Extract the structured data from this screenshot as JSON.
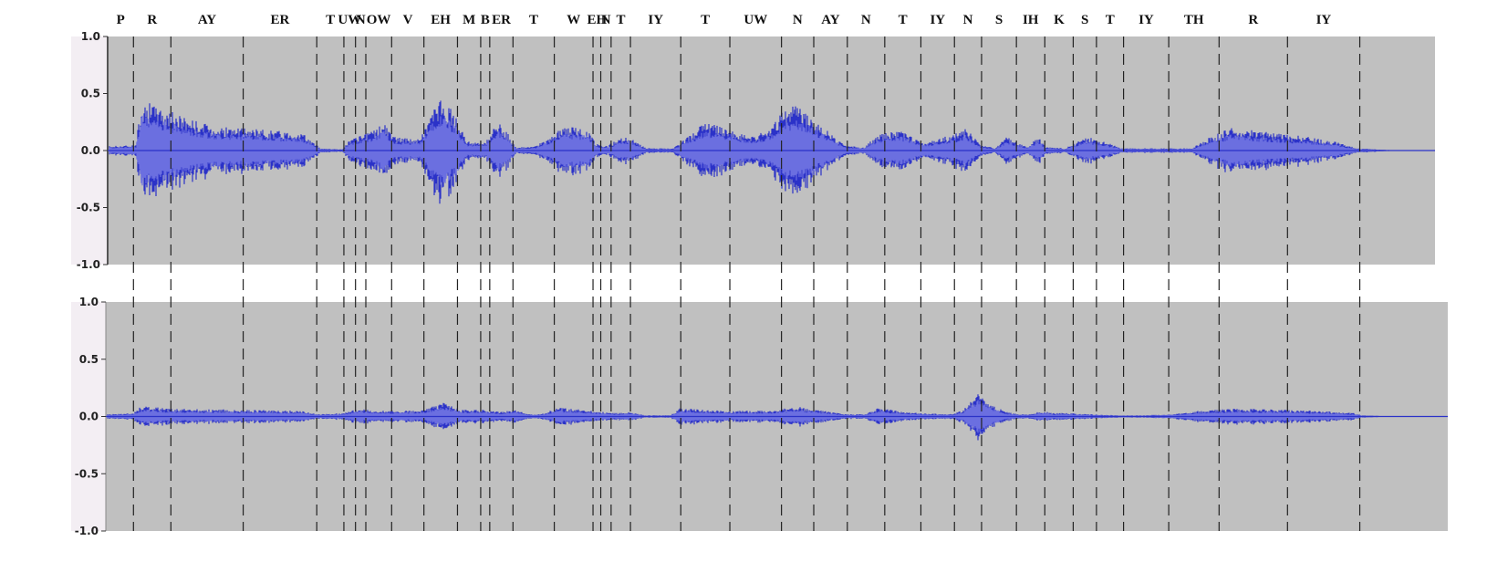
{
  "colors": {
    "panel_bg": "#c0c0c0",
    "waveform_outer": "#2b32c8",
    "waveform_inner": "#6b6fe0",
    "boundary_line": "#222222",
    "axis_strip": "#f3eef3"
  },
  "chart_data": {
    "type": "line",
    "title": "",
    "xlabel": "",
    "ylabel": "",
    "phonemes": [
      "P",
      "R",
      "AY",
      "ER",
      "T",
      "UW",
      "N",
      "OW",
      "V",
      "EH",
      "M",
      "B",
      "ER",
      "T",
      "W",
      "EH",
      "N",
      "T",
      "IY",
      "T",
      "UW",
      "N",
      "AY",
      "N",
      "T",
      "IY",
      "N",
      "S",
      "IH",
      "K",
      "S",
      "T",
      "IY",
      "TH",
      "R",
      "IY"
    ],
    "x_range": [
      0,
      100
    ],
    "boundaries": [
      2.0,
      4.9,
      10.5,
      16.2,
      18.3,
      19.2,
      20.0,
      22.0,
      24.5,
      27.1,
      28.9,
      29.6,
      31.4,
      34.6,
      37.6,
      38.2,
      39.0,
      40.5,
      44.4,
      48.2,
      52.2,
      54.7,
      57.3,
      60.2,
      63.0,
      65.6,
      67.7,
      70.4,
      72.6,
      74.8,
      76.6,
      78.7,
      82.2,
      86.1,
      91.4,
      97.0
    ],
    "panels": [
      {
        "name": "",
        "yticks": [
          "1.0",
          "0.5",
          "0.0",
          "-0.5",
          "-1.0"
        ],
        "ylim": [
          -1.0,
          1.0
        ],
        "envelope": [
          [
            0,
            0.04
          ],
          [
            2.2,
            0.05
          ],
          [
            2.6,
            0.45
          ],
          [
            4.0,
            0.38
          ],
          [
            6.0,
            0.3
          ],
          [
            8.0,
            0.22
          ],
          [
            10.0,
            0.2
          ],
          [
            13.0,
            0.18
          ],
          [
            15.0,
            0.16
          ],
          [
            16.5,
            0.02
          ],
          [
            18.2,
            0.01
          ],
          [
            18.7,
            0.09
          ],
          [
            20.3,
            0.16
          ],
          [
            21.4,
            0.25
          ],
          [
            22.2,
            0.12
          ],
          [
            24.2,
            0.1
          ],
          [
            25.2,
            0.38
          ],
          [
            26.0,
            0.46
          ],
          [
            27.0,
            0.3
          ],
          [
            27.8,
            0.08
          ],
          [
            29.3,
            0.08
          ],
          [
            30.2,
            0.26
          ],
          [
            31.0,
            0.15
          ],
          [
            31.6,
            0.03
          ],
          [
            32.5,
            0.03
          ],
          [
            33.2,
            0.04
          ],
          [
            35.5,
            0.22
          ],
          [
            37.2,
            0.2
          ],
          [
            37.8,
            0.06
          ],
          [
            38.7,
            0.04
          ],
          [
            39.5,
            0.1
          ],
          [
            40.4,
            0.12
          ],
          [
            41.7,
            0.02
          ],
          [
            43.8,
            0.02
          ],
          [
            44.5,
            0.08
          ],
          [
            46.3,
            0.25
          ],
          [
            48.0,
            0.2
          ],
          [
            49.8,
            0.12
          ],
          [
            51.4,
            0.2
          ],
          [
            52.3,
            0.36
          ],
          [
            53.5,
            0.4
          ],
          [
            55.5,
            0.2
          ],
          [
            57.2,
            0.04
          ],
          [
            58.6,
            0.03
          ],
          [
            59.8,
            0.15
          ],
          [
            61.5,
            0.18
          ],
          [
            63.2,
            0.07
          ],
          [
            65.5,
            0.14
          ],
          [
            66.5,
            0.2
          ],
          [
            67.6,
            0.05
          ],
          [
            68.8,
            0.02
          ],
          [
            69.6,
            0.12
          ],
          [
            70.6,
            0.07
          ],
          [
            71.2,
            0.03
          ],
          [
            72.1,
            0.12
          ],
          [
            72.7,
            0.03
          ],
          [
            74.2,
            0.02
          ],
          [
            75.8,
            0.12
          ],
          [
            77.0,
            0.09
          ],
          [
            78.5,
            0.02
          ],
          [
            84.0,
            0.02
          ],
          [
            85.5,
            0.13
          ],
          [
            87.0,
            0.2
          ],
          [
            90.0,
            0.16
          ],
          [
            93.0,
            0.12
          ],
          [
            95.0,
            0.08
          ],
          [
            96.8,
            0.02
          ],
          [
            100,
            0.0
          ]
        ]
      },
      {
        "name": "",
        "yticks": [
          "1.0",
          "0.5",
          "0.0",
          "-0.5",
          "-1.0"
        ],
        "ylim": [
          -1.0,
          1.0
        ],
        "envelope": [
          [
            0,
            0.02
          ],
          [
            2.0,
            0.03
          ],
          [
            2.6,
            0.09
          ],
          [
            5.0,
            0.07
          ],
          [
            10.0,
            0.06
          ],
          [
            15.0,
            0.05
          ],
          [
            16.3,
            0.02
          ],
          [
            18.3,
            0.03
          ],
          [
            19.5,
            0.07
          ],
          [
            21.0,
            0.05
          ],
          [
            22.5,
            0.05
          ],
          [
            24.5,
            0.06
          ],
          [
            26.0,
            0.12
          ],
          [
            27.3,
            0.06
          ],
          [
            29.0,
            0.06
          ],
          [
            30.5,
            0.04
          ],
          [
            31.6,
            0.06
          ],
          [
            32.6,
            0.02
          ],
          [
            33.6,
            0.02
          ],
          [
            35.0,
            0.08
          ],
          [
            37.5,
            0.05
          ],
          [
            39.2,
            0.03
          ],
          [
            40.5,
            0.04
          ],
          [
            41.6,
            0.01
          ],
          [
            43.6,
            0.01
          ],
          [
            44.4,
            0.08
          ],
          [
            46.0,
            0.06
          ],
          [
            48.0,
            0.05
          ],
          [
            50.0,
            0.05
          ],
          [
            52.0,
            0.06
          ],
          [
            53.2,
            0.09
          ],
          [
            55.5,
            0.05
          ],
          [
            57.0,
            0.02
          ],
          [
            58.7,
            0.02
          ],
          [
            59.8,
            0.08
          ],
          [
            61.5,
            0.04
          ],
          [
            63.1,
            0.03
          ],
          [
            65.5,
            0.02
          ],
          [
            66.3,
            0.06
          ],
          [
            67.5,
            0.22
          ],
          [
            68.3,
            0.12
          ],
          [
            69.6,
            0.04
          ],
          [
            70.6,
            0.02
          ],
          [
            71.5,
            0.02
          ],
          [
            72.4,
            0.05
          ],
          [
            73.2,
            0.03
          ],
          [
            74.5,
            0.03
          ],
          [
            76.0,
            0.02
          ],
          [
            78.3,
            0.01
          ],
          [
            80.0,
            0.01
          ],
          [
            82.5,
            0.02
          ],
          [
            84.5,
            0.05
          ],
          [
            87.5,
            0.07
          ],
          [
            90.5,
            0.06
          ],
          [
            94.0,
            0.05
          ],
          [
            96.5,
            0.03
          ],
          [
            97.2,
            0.01
          ],
          [
            100,
            0.0
          ]
        ]
      }
    ]
  }
}
